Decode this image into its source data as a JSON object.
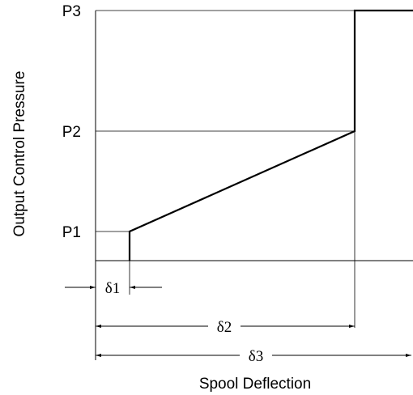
{
  "y_axis_label": "Output Control Pressure",
  "x_axis_label": "Spool Deflection",
  "pressure_levels": [
    "P1",
    "P2",
    "P3"
  ],
  "deflection_labels": [
    "δ1",
    "δ2",
    "δ3"
  ]
}
